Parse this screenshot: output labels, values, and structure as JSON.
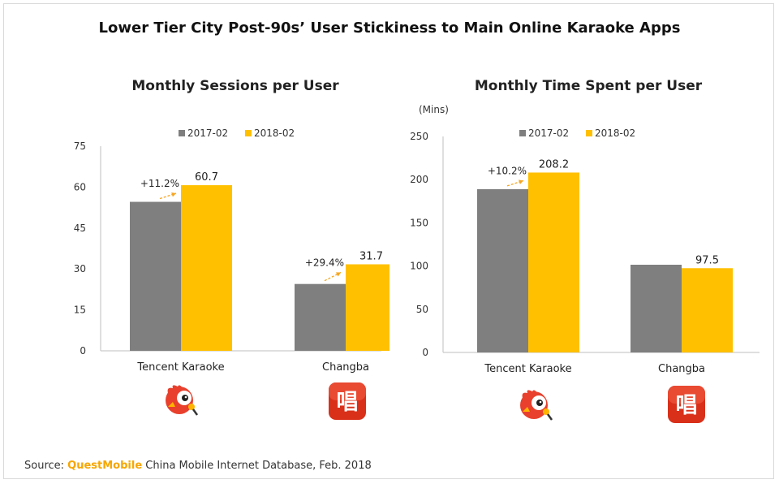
{
  "title": "Lower Tier City Post-90s’ User Stickiness to Main Online Karaoke Apps",
  "colors": {
    "series_2017": "#7f7f7f",
    "series_2018": "#ffc000",
    "arrow": "#f5a623",
    "changba_red": "#d9301a",
    "tencent_red": "#e8402d"
  },
  "icons": [
    "tencent-karaoke-bird-icon",
    "changba-sing-icon",
    "tencent-karaoke-bird-icon",
    "changba-sing-icon"
  ],
  "changba_glyph": "唱",
  "chart_data": [
    {
      "type": "bar",
      "title": "Monthly Sessions per User",
      "ylabel": "",
      "categories": [
        "Tencent Karaoke",
        "Changba"
      ],
      "series": [
        {
          "name": "2017-02",
          "values": [
            54.6,
            24.5
          ]
        },
        {
          "name": "2018-02",
          "values": [
            60.7,
            31.7
          ]
        }
      ],
      "data_labels": [
        "60.7",
        "31.7"
      ],
      "growth_labels": [
        "+11.2%",
        "+29.4%"
      ],
      "yticks": [
        "0",
        "15",
        "30",
        "45",
        "60",
        "75"
      ],
      "ylim": [
        0,
        75
      ],
      "grid": false,
      "legend": "top"
    },
    {
      "type": "bar",
      "title": "Monthly Time Spent per User",
      "ylabel": "(Mins)",
      "categories": [
        "Tencent Karaoke",
        "Changba"
      ],
      "series": [
        {
          "name": "2017-02",
          "values": [
            189,
            101.5
          ]
        },
        {
          "name": "2018-02",
          "values": [
            208.2,
            97.5
          ]
        }
      ],
      "data_labels": [
        "208.2",
        "97.5"
      ],
      "growth_labels": [
        "+10.2%",
        ""
      ],
      "yticks": [
        "0",
        "50",
        "100",
        "150",
        "200",
        "250"
      ],
      "ylim": [
        0,
        250
      ],
      "grid": false,
      "legend": "top"
    }
  ],
  "source": {
    "prefix": "Source: ",
    "brand": "QuestMobile",
    "rest": " China Mobile Internet Database, Feb. 2018"
  }
}
